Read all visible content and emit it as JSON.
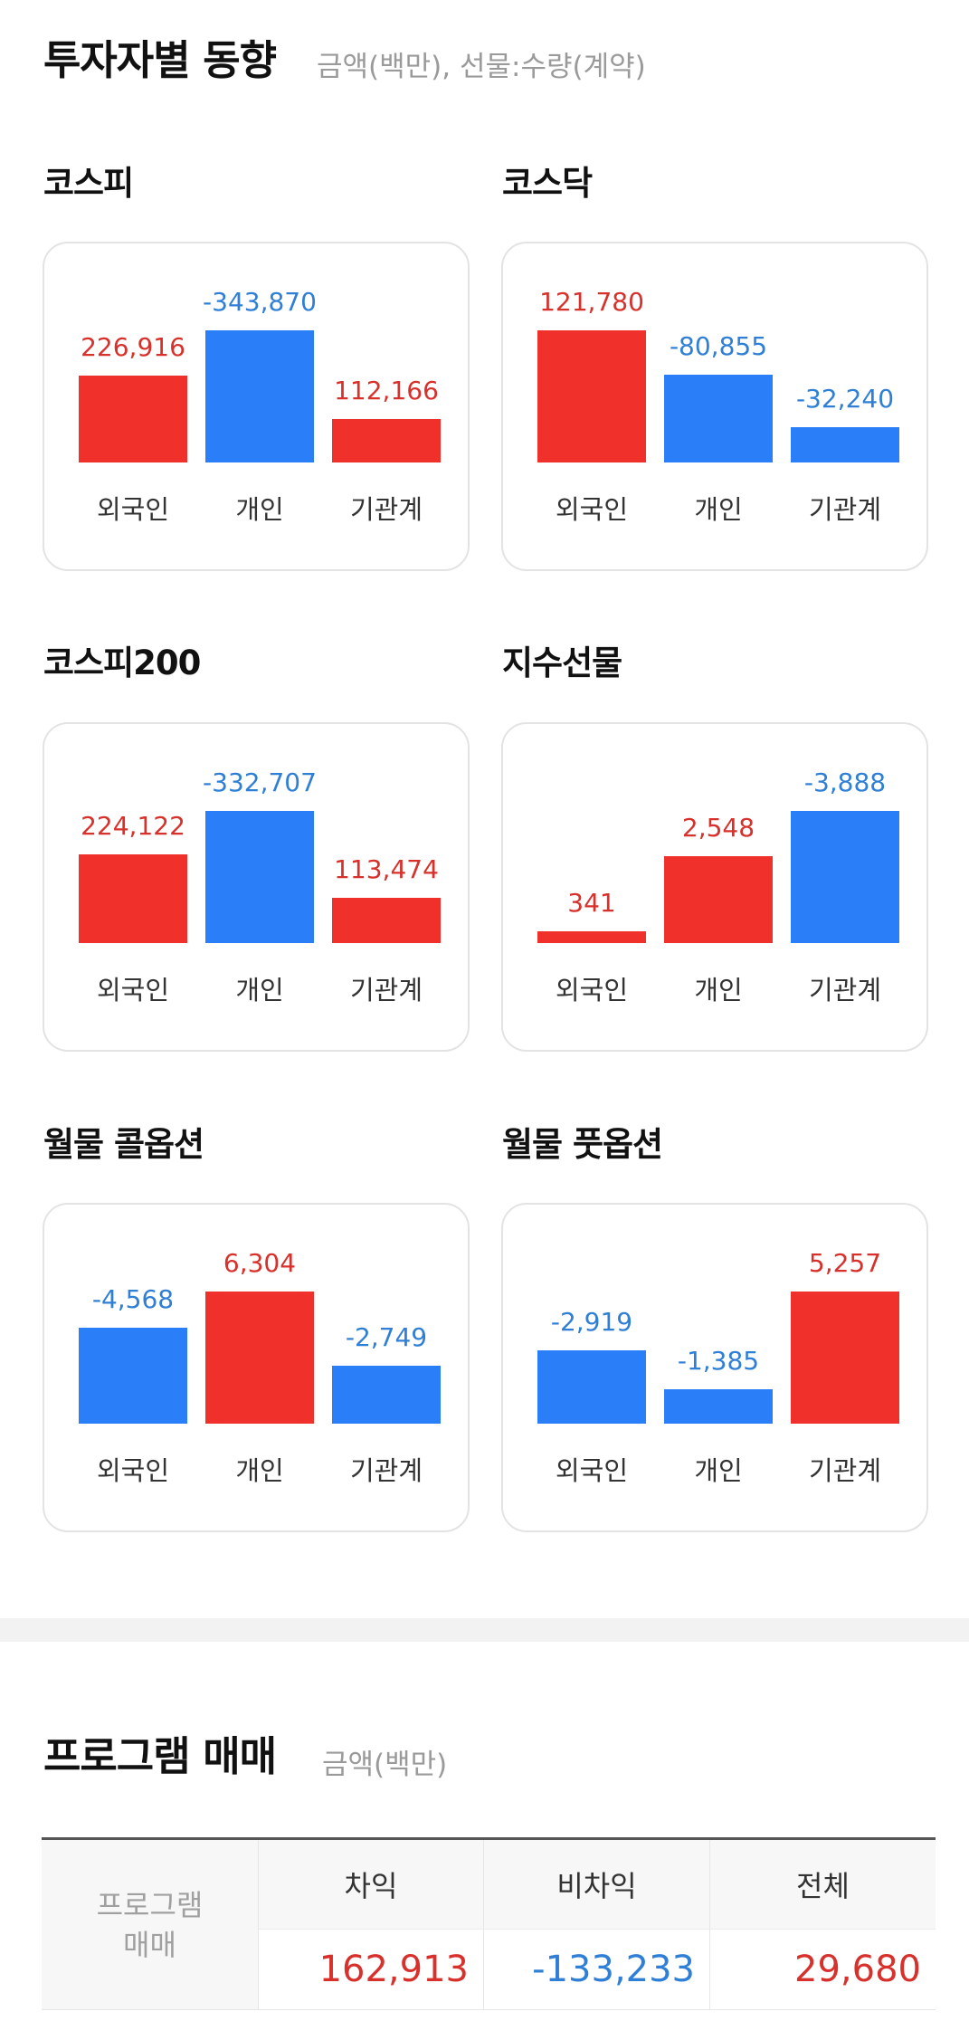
{
  "investor": {
    "title": "투자자별 동향",
    "subtitle": "금액(백만), 선물:수량(계약)",
    "labels": [
      "외국인",
      "개인",
      "기관계"
    ],
    "panels": [
      {
        "title": "코스피",
        "values": [
          "226,916",
          "-343,870",
          "112,166"
        ],
        "numbers": [
          226916,
          -343870,
          112166
        ]
      },
      {
        "title": "코스닥",
        "values": [
          "121,780",
          "-80,855",
          "-32,240"
        ],
        "numbers": [
          121780,
          -80855,
          -32240
        ]
      },
      {
        "title": "코스피200",
        "values": [
          "224,122",
          "-332,707",
          "113,474"
        ],
        "numbers": [
          224122,
          -332707,
          113474
        ]
      },
      {
        "title": "지수선물",
        "values": [
          "341",
          "2,548",
          "-3,888"
        ],
        "numbers": [
          341,
          2548,
          -3888
        ]
      },
      {
        "title": "월물 콜옵션",
        "values": [
          "-4,568",
          "6,304",
          "-2,749"
        ],
        "numbers": [
          -4568,
          6304,
          -2749
        ]
      },
      {
        "title": "월물 풋옵션",
        "values": [
          "-2,919",
          "-1,385",
          "5,257"
        ],
        "numbers": [
          -2919,
          -1385,
          5257
        ]
      }
    ]
  },
  "program": {
    "title": "프로그램 매매",
    "subtitle": "금액(백만)",
    "row_header": "프로그램\n매매",
    "columns": [
      "차익",
      "비차익",
      "전체"
    ],
    "values": [
      "162,913",
      "-133,233",
      "29,680"
    ]
  },
  "colors": {
    "positive": "#f0302a",
    "negative": "#2a7ef8",
    "positive_text": "#d8302b",
    "negative_text": "#2f7fd6"
  }
}
